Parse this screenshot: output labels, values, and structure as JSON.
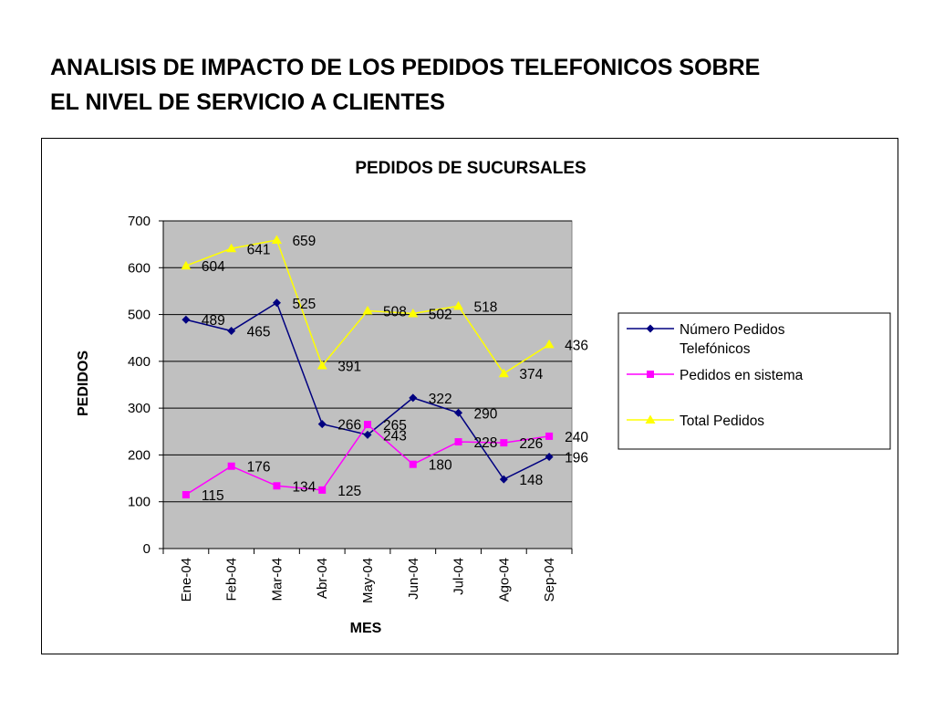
{
  "slide": {
    "title_line1": "ANALISIS DE IMPACTO DE LOS PEDIDOS TELEFONICOS SOBRE",
    "title_line2": "EL NIVEL DE SERVICIO A CLIENTES"
  },
  "chart_data": {
    "type": "line",
    "title": "PEDIDOS DE SUCURSALES",
    "xlabel": "MES",
    "ylabel": "PEDIDOS",
    "categories": [
      "Ene-04",
      "Feb-04",
      "Mar-04",
      "Abr-04",
      "May-04",
      "Jun-04",
      "Jul-04",
      "Ago-04",
      "Sep-04"
    ],
    "ylim": [
      0,
      700
    ],
    "yticks": [
      0,
      100,
      200,
      300,
      400,
      500,
      600,
      700
    ],
    "grid": true,
    "plot_background": "#c0c0c0",
    "legend_position": "right",
    "series": [
      {
        "name": "Número Pedidos Telefónicos",
        "legend_lines": [
          "Número Pedidos",
          "Telefónicos"
        ],
        "values": [
          489,
          465,
          525,
          266,
          243,
          322,
          290,
          148,
          196
        ],
        "color": "#000080",
        "marker": "diamond"
      },
      {
        "name": "Pedidos en sistema",
        "legend_lines": [
          "Pedidos en sistema"
        ],
        "values": [
          115,
          176,
          134,
          125,
          265,
          180,
          228,
          226,
          240
        ],
        "color": "#ff00ff",
        "marker": "square"
      },
      {
        "name": "Total Pedidos",
        "legend_lines": [
          "Total Pedidos"
        ],
        "values": [
          604,
          641,
          659,
          391,
          508,
          502,
          518,
          374,
          436
        ],
        "color": "#ffff00",
        "marker": "triangle"
      }
    ]
  }
}
